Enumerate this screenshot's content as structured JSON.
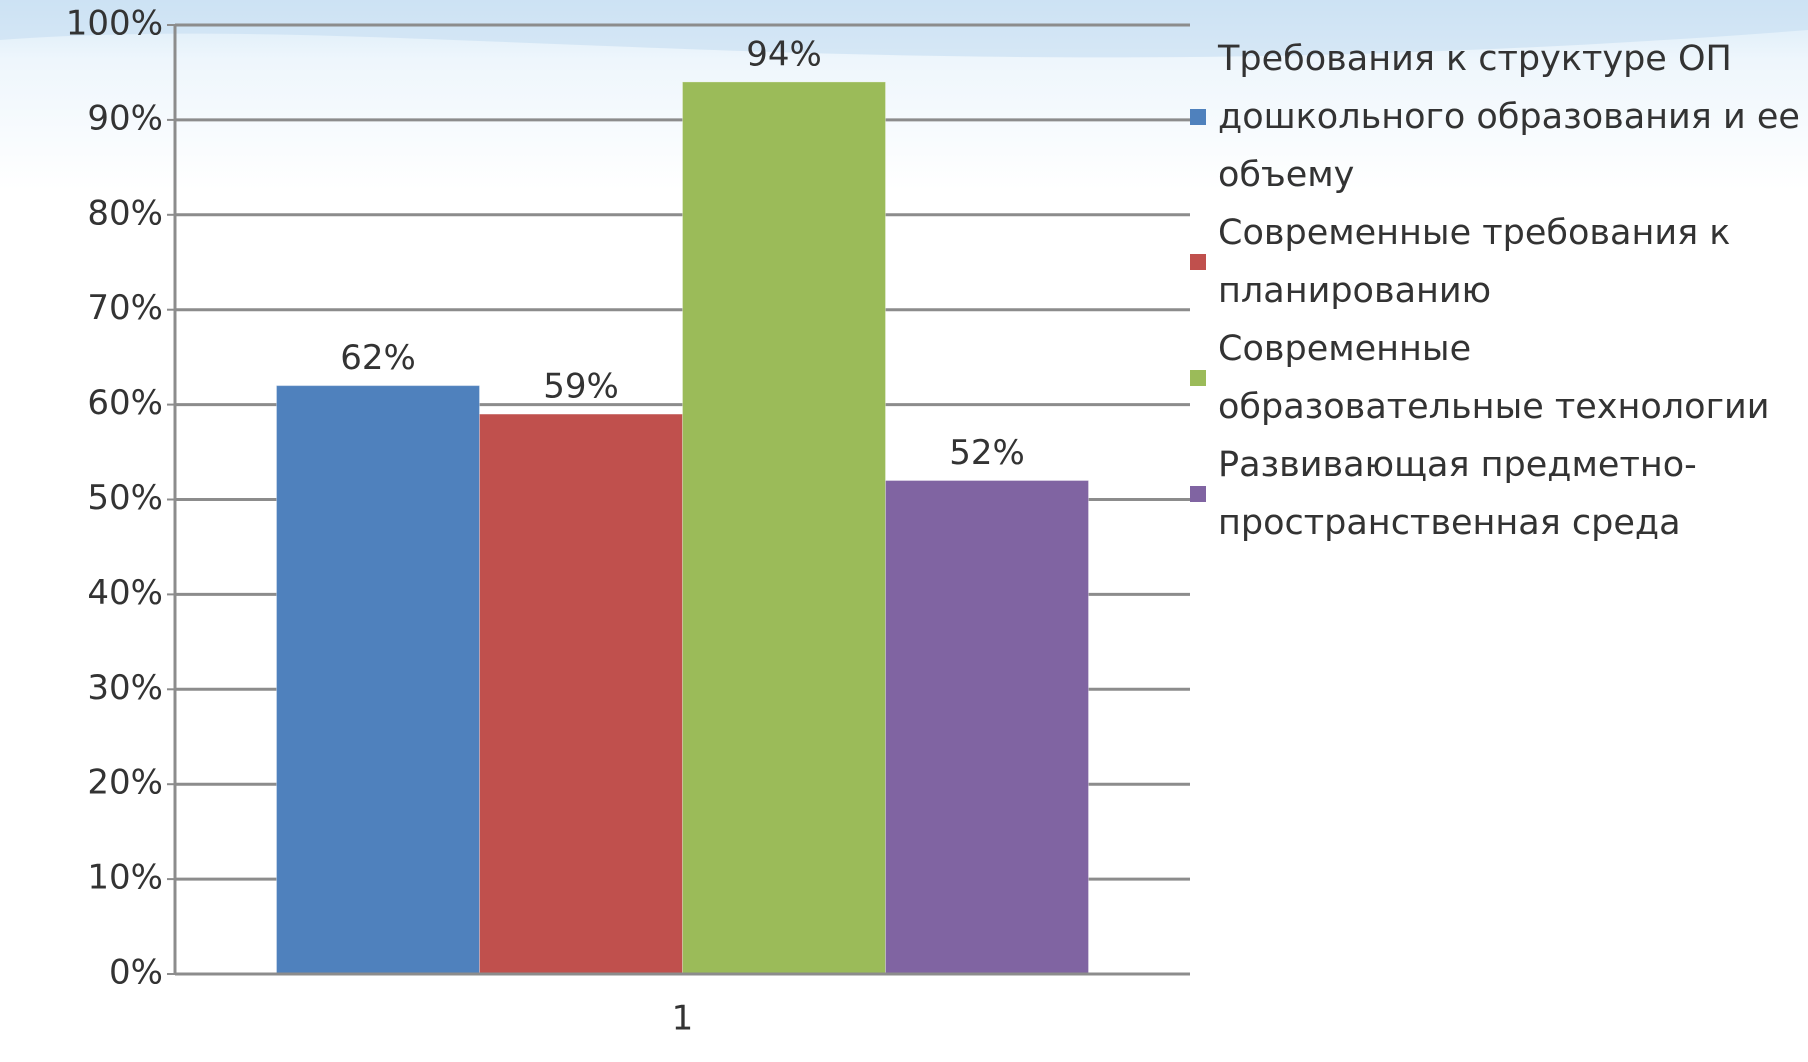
{
  "chart_data": {
    "type": "bar",
    "categories": [
      "1"
    ],
    "series": [
      {
        "name": "Требования к структуре ОП дошкольного образования и ее объему",
        "color": "#4f81bd",
        "values": [
          62
        ],
        "value_labels": [
          "62%"
        ]
      },
      {
        "name": "Современные требования к планированию",
        "color": "#c0504d",
        "values": [
          59
        ],
        "value_labels": [
          "59%"
        ]
      },
      {
        "name": "Современные образовательные технологии",
        "color": "#9bbb59",
        "values": [
          94
        ],
        "value_labels": [
          "94%"
        ]
      },
      {
        "name": "Развивающая предметно-пространственная среда",
        "color": "#8064a2",
        "values": [
          52
        ],
        "value_labels": [
          "52%"
        ]
      }
    ],
    "ylim": [
      0,
      100
    ],
    "yticks": [
      {
        "value": 0,
        "label": "0%"
      },
      {
        "value": 10,
        "label": "10%"
      },
      {
        "value": 20,
        "label": "20%"
      },
      {
        "value": 30,
        "label": "30%"
      },
      {
        "value": 40,
        "label": "40%"
      },
      {
        "value": 50,
        "label": "50%"
      },
      {
        "value": 60,
        "label": "60%"
      },
      {
        "value": 70,
        "label": "70%"
      },
      {
        "value": 80,
        "label": "80%"
      },
      {
        "value": 90,
        "label": "90%"
      },
      {
        "value": 100,
        "label": "100%"
      }
    ],
    "grid": true,
    "legend": "right"
  }
}
